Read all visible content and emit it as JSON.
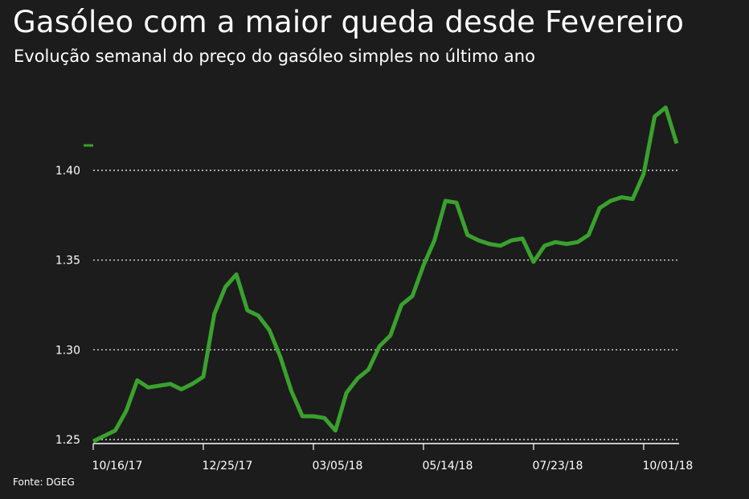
{
  "title": "Gasóleo com a maior queda desde Fevereiro",
  "subtitle": "Evolução semanal do preço do gasóleo simples no último ano",
  "source": "Fonte: DGEG",
  "chart_data": {
    "type": "line",
    "title": "Gasóleo com a maior queda desde Fevereiro",
    "subtitle": "Evolução semanal do preço do gasóleo simples no último ano",
    "xlabel": "",
    "ylabel": "",
    "ylim": [
      1.25,
      1.43
    ],
    "yticks": [
      1.25,
      1.3,
      1.35,
      1.4
    ],
    "ytick_labels": [
      "1.25",
      "1.30",
      "1.35",
      "1.40"
    ],
    "xticks": [
      {
        "index": 0,
        "label": "10/16/17"
      },
      {
        "index": 10,
        "label": "12/25/17"
      },
      {
        "index": 20,
        "label": "03/05/18"
      },
      {
        "index": 30,
        "label": "05/14/18"
      },
      {
        "index": 40,
        "label": "07/23/18"
      },
      {
        "index": 50,
        "label": "10/01/18"
      }
    ],
    "grid": "horizontal-dotted",
    "color": "#3aa12e",
    "series": [
      {
        "values": [
          1.249,
          1.252,
          1.255,
          1.266,
          1.283,
          1.279,
          1.28,
          1.281,
          1.278,
          1.281,
          1.285,
          1.32,
          1.335,
          1.342,
          1.322,
          1.319,
          1.311,
          1.296,
          1.277,
          1.263,
          1.263,
          1.262,
          1.255,
          1.276,
          1.284,
          1.289,
          1.302,
          1.308,
          1.325,
          1.33,
          1.347,
          1.361,
          1.383,
          1.382,
          1.364,
          1.361,
          1.359,
          1.358,
          1.361,
          1.362,
          1.349,
          1.358,
          1.36,
          1.359,
          1.36,
          1.364,
          1.379,
          1.383,
          1.385,
          1.384,
          1.398,
          1.43,
          1.435,
          1.415
        ]
      }
    ]
  }
}
